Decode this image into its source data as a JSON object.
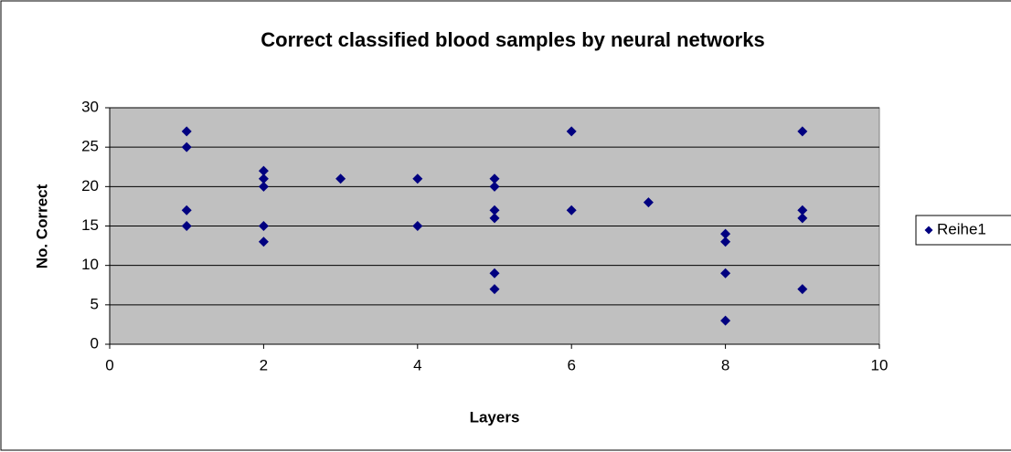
{
  "chart_data": {
    "type": "scatter",
    "title": "Correct classified blood samples by neural networks",
    "x_label": "Layers",
    "y_label": "No. Correct",
    "x": [
      1,
      1,
      1,
      1,
      2,
      2,
      2,
      2,
      2,
      3,
      4,
      4,
      5,
      5,
      5,
      5,
      5,
      5,
      6,
      6,
      7,
      8,
      8,
      8,
      8,
      9,
      9,
      9,
      9
    ],
    "series": [
      {
        "name": "Reihe1",
        "color": "#000080",
        "values": [
          27,
          25,
          17,
          15,
          22,
          21,
          20,
          15,
          13,
          21,
          21,
          15,
          21,
          20,
          17,
          16,
          9,
          7,
          27,
          17,
          18,
          14,
          13,
          9,
          3,
          27,
          17,
          16,
          7
        ]
      }
    ],
    "xlim": [
      0,
      10
    ],
    "xticks": [
      0,
      2,
      4,
      6,
      8,
      10
    ],
    "ylim": [
      0,
      30
    ],
    "yticks": [
      0,
      5,
      10,
      15,
      20,
      25,
      30
    ],
    "grid": true,
    "legend": "right"
  }
}
